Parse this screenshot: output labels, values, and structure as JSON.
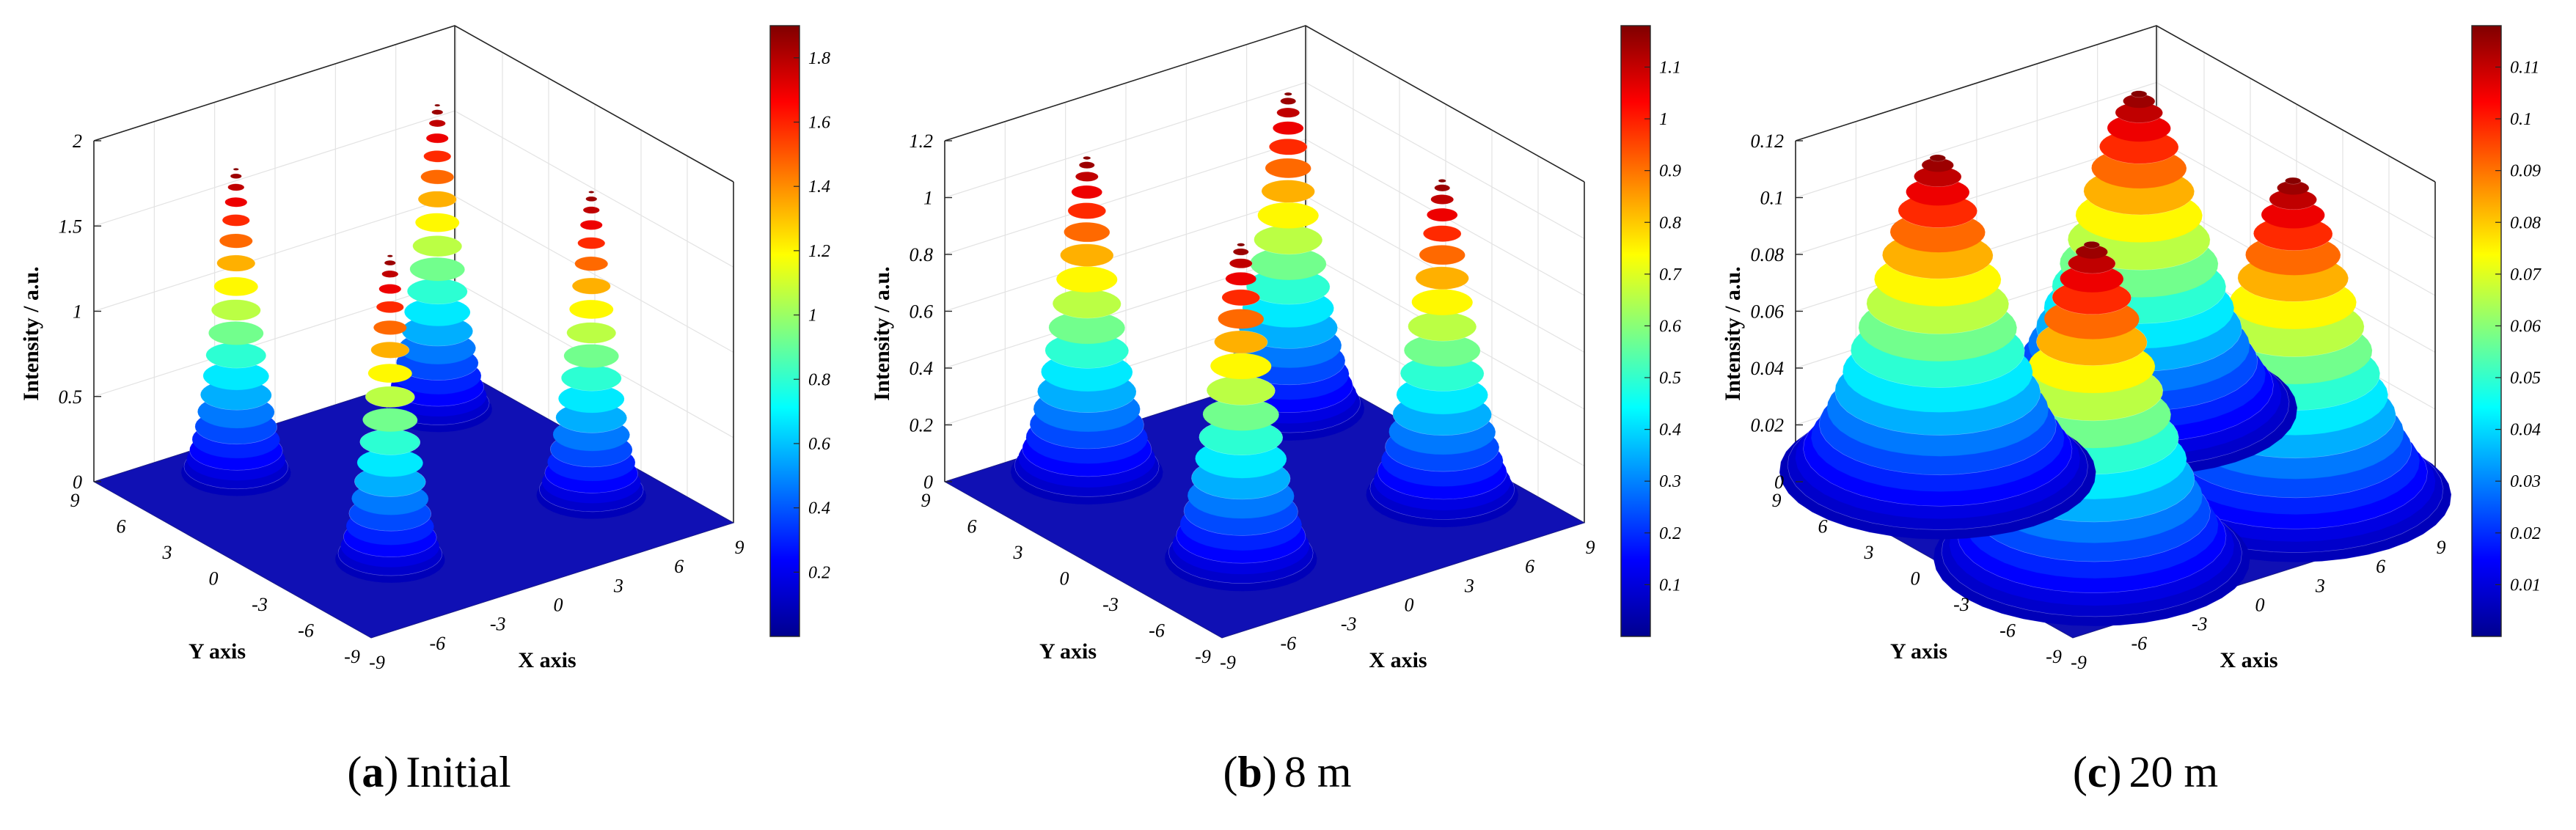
{
  "chart_data": [
    {
      "type": "surface3d",
      "caption_letter": "a",
      "caption_text": "Initial",
      "zlabel": "Intensity / a.u.",
      "xlabel": "X axis",
      "ylabel": "Y axis",
      "xlim": [
        -9,
        9
      ],
      "ylim": [
        -9,
        9
      ],
      "xticks": [
        -9,
        -6,
        -3,
        0,
        3,
        6,
        9
      ],
      "yticks": [
        -9,
        -6,
        -3,
        0,
        3,
        6,
        9
      ],
      "zlim": [
        0,
        2
      ],
      "zticks": [
        0,
        0.5,
        1,
        1.5,
        2
      ],
      "colorbar_range": [
        0,
        1.9
      ],
      "colorbar_ticks": [
        0.2,
        0.4,
        0.6,
        0.8,
        1,
        1.2,
        1.4,
        1.6,
        1.8
      ],
      "beam_peak": 1.9,
      "beam_width": 0.9,
      "beam_centers": [
        [
          -5,
          5
        ],
        [
          5,
          5
        ],
        [
          -5,
          -5
        ],
        [
          5,
          -5
        ]
      ]
    },
    {
      "type": "surface3d",
      "caption_letter": "b",
      "caption_text": "8 m",
      "zlabel": "Intensity / a.u.",
      "xlabel": "X axis",
      "ylabel": "Y axis",
      "xlim": [
        -9,
        9
      ],
      "ylim": [
        -9,
        9
      ],
      "xticks": [
        -9,
        -6,
        -3,
        0,
        3,
        6,
        9
      ],
      "yticks": [
        -9,
        -6,
        -3,
        0,
        3,
        6,
        9
      ],
      "zlim": [
        0,
        1.2
      ],
      "zticks": [
        0,
        0.2,
        0.4,
        0.6,
        0.8,
        1,
        1.2
      ],
      "colorbar_range": [
        0,
        1.18
      ],
      "colorbar_ticks": [
        0.1,
        0.2,
        0.3,
        0.4,
        0.5,
        0.6,
        0.7,
        0.8,
        0.9,
        1,
        1.1
      ],
      "beam_peak": 1.18,
      "beam_width": 1.25,
      "beam_centers": [
        [
          -5,
          5
        ],
        [
          5,
          5
        ],
        [
          -5,
          -5
        ],
        [
          5,
          -5
        ]
      ]
    },
    {
      "type": "surface3d",
      "caption_letter": "c",
      "caption_text": "20 m",
      "zlabel": "Intensity / a.u.",
      "xlabel": "X axis",
      "ylabel": "Y axis",
      "xlim": [
        -9,
        9
      ],
      "ylim": [
        -9,
        9
      ],
      "xticks": [
        -9,
        -6,
        -3,
        0,
        3,
        6,
        9
      ],
      "yticks": [
        -9,
        -6,
        -3,
        0,
        3,
        6,
        9
      ],
      "zlim": [
        0,
        0.12
      ],
      "zticks": [
        0,
        0.02,
        0.04,
        0.06,
        0.08,
        0.1,
        0.12
      ],
      "colorbar_range": [
        0,
        0.118
      ],
      "colorbar_ticks": [
        0.01,
        0.02,
        0.03,
        0.04,
        0.05,
        0.06,
        0.07,
        0.08,
        0.09,
        0.1,
        0.11
      ],
      "beam_peak": 0.118,
      "beam_width": 2.6,
      "beam_centers": [
        [
          -5,
          5
        ],
        [
          5,
          5
        ],
        [
          -5,
          -5
        ],
        [
          5,
          -5
        ]
      ]
    }
  ]
}
